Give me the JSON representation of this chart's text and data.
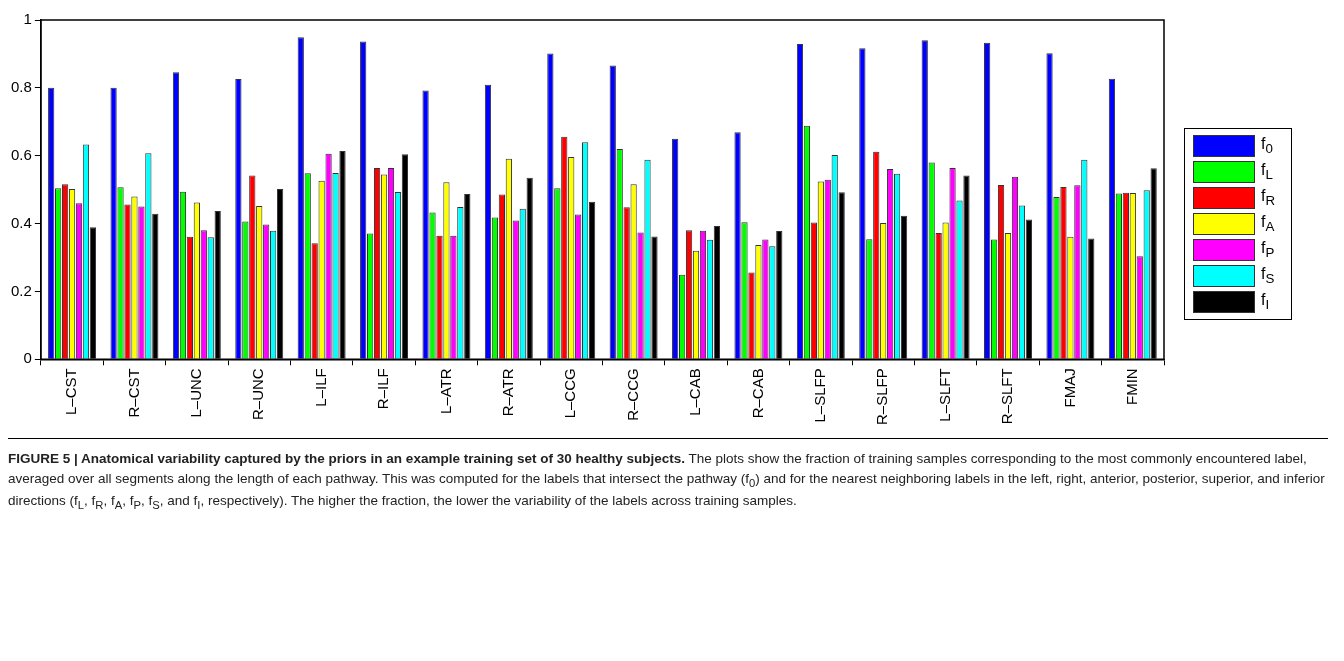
{
  "chart_data": {
    "type": "bar",
    "title": "FIGURE 5 | Anatomical variability captured by the priors in an example training set of 30 healthy subjects.",
    "annotations": [
      "The plots show the fraction of training samples corresponding to the most commonly encountered label, averaged over all segments along the length of each pathway. This was computed for the labels that intersect the pathway (f$_{0}$) and for the nearest neighboring labels in the left, right, anterior, posterior, superior, and inferior directions (f$_{L}$, f$_{R}$, f$_{A}$, f$_{P}$, f$_{S}$, and f$_{I}$, respectively). The higher the fraction, the lower the variability of the labels across training samples."
    ],
    "categories": [
      "L–CST",
      "R–CST",
      "L–UNC",
      "R–UNC",
      "L–ILF",
      "R–ILF",
      "L–ATR",
      "R–ATR",
      "L–CCG",
      "R–CCG",
      "L–CAB",
      "R–CAB",
      "L–SLFP",
      "R–SLFP",
      "L–SLFT",
      "R–SLFT",
      "FMAJ",
      "FMIN"
    ],
    "series": [
      {
        "name": "f$_{0}$",
        "color": "#0000ff",
        "values": [
          0.8,
          0.8,
          0.846,
          0.826,
          0.949,
          0.937,
          0.792,
          0.809,
          0.901,
          0.866,
          0.65,
          0.669,
          0.929,
          0.917,
          0.94,
          0.933,
          0.902,
          0.827
        ]
      },
      {
        "name": "f$_{L}$",
        "color": "#00ff00",
        "values": [
          0.504,
          0.507,
          0.494,
          0.406,
          0.548,
          0.371,
          0.433,
          0.418,
          0.504,
          0.62,
          0.249,
          0.404,
          0.688,
          0.354,
          0.58,
          0.353,
          0.478,
          0.489
        ]
      },
      {
        "name": "f$_{R}$",
        "color": "#ff0000",
        "values": [
          0.516,
          0.456,
          0.361,
          0.542,
          0.342,
          0.564,
          0.364,
          0.486,
          0.656,
          0.448,
          0.38,
          0.256,
          0.403,
          0.612,
          0.372,
          0.514,
          0.508,
          0.491
        ]
      },
      {
        "name": "f$_{A}$",
        "color": "#ffff00",
        "values": [
          0.502,
          0.48,
          0.462,
          0.452,
          0.526,
          0.545,
          0.522,
          0.591,
          0.596,
          0.516,
          0.32,
          0.337,
          0.524,
          0.402,
          0.403,
          0.372,
          0.361,
          0.49
        ]
      },
      {
        "name": "f$_{P}$",
        "color": "#ff00ff",
        "values": [
          0.46,
          0.45,
          0.38,
          0.397,
          0.606,
          0.564,
          0.364,
          0.409,
          0.427,
          0.374,
          0.379,
          0.353,
          0.529,
          0.561,
          0.564,
          0.538,
          0.513,
          0.304
        ]
      },
      {
        "name": "f$_{S}$",
        "color": "#00ffff",
        "values": [
          0.633,
          0.607,
          0.36,
          0.379,
          0.549,
          0.493,
          0.449,
          0.444,
          0.64,
          0.588,
          0.352,
          0.333,
          0.602,
          0.547,
          0.468,
          0.453,
          0.588,
          0.498
        ]
      },
      {
        "name": "f$_{I}$",
        "color": "#000000",
        "values": [
          0.389,
          0.429,
          0.437,
          0.502,
          0.614,
          0.604,
          0.487,
          0.535,
          0.464,
          0.362,
          0.393,
          0.378,
          0.492,
          0.423,
          0.542,
          0.412,
          0.356,
          0.563
        ]
      }
    ],
    "ylim": [
      0,
      1
    ],
    "yticks": [
      0,
      0.2,
      0.4,
      0.6,
      0.8,
      1
    ],
    "legend": "right"
  }
}
